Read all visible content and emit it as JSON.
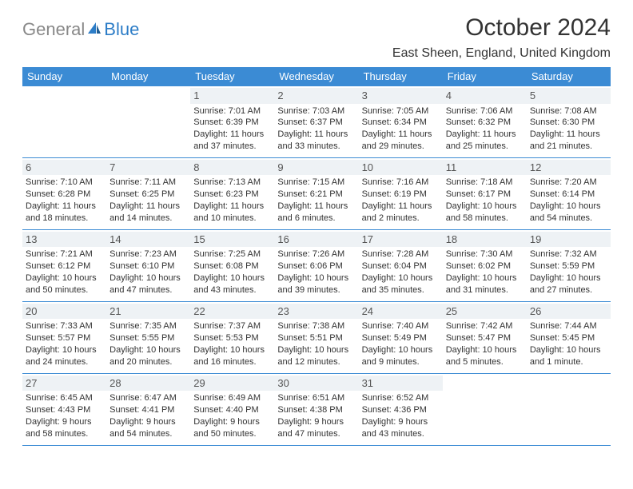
{
  "logo": {
    "gray": "General",
    "blue": "Blue"
  },
  "title": "October 2024",
  "location": "East Sheen, England, United Kingdom",
  "colors": {
    "header_bg": "#3b8bd4",
    "header_text": "#ffffff",
    "border": "#3b8bd4",
    "daynum_bg": "#eef2f5",
    "body_text": "#333333",
    "logo_gray": "#888888",
    "logo_blue": "#2d7dc7"
  },
  "day_headers": [
    "Sunday",
    "Monday",
    "Tuesday",
    "Wednesday",
    "Thursday",
    "Friday",
    "Saturday"
  ],
  "weeks": [
    [
      null,
      null,
      {
        "n": "1",
        "sr": "Sunrise: 7:01 AM",
        "ss": "Sunset: 6:39 PM",
        "d1": "Daylight: 11 hours",
        "d2": "and 37 minutes."
      },
      {
        "n": "2",
        "sr": "Sunrise: 7:03 AM",
        "ss": "Sunset: 6:37 PM",
        "d1": "Daylight: 11 hours",
        "d2": "and 33 minutes."
      },
      {
        "n": "3",
        "sr": "Sunrise: 7:05 AM",
        "ss": "Sunset: 6:34 PM",
        "d1": "Daylight: 11 hours",
        "d2": "and 29 minutes."
      },
      {
        "n": "4",
        "sr": "Sunrise: 7:06 AM",
        "ss": "Sunset: 6:32 PM",
        "d1": "Daylight: 11 hours",
        "d2": "and 25 minutes."
      },
      {
        "n": "5",
        "sr": "Sunrise: 7:08 AM",
        "ss": "Sunset: 6:30 PM",
        "d1": "Daylight: 11 hours",
        "d2": "and 21 minutes."
      }
    ],
    [
      {
        "n": "6",
        "sr": "Sunrise: 7:10 AM",
        "ss": "Sunset: 6:28 PM",
        "d1": "Daylight: 11 hours",
        "d2": "and 18 minutes."
      },
      {
        "n": "7",
        "sr": "Sunrise: 7:11 AM",
        "ss": "Sunset: 6:25 PM",
        "d1": "Daylight: 11 hours",
        "d2": "and 14 minutes."
      },
      {
        "n": "8",
        "sr": "Sunrise: 7:13 AM",
        "ss": "Sunset: 6:23 PM",
        "d1": "Daylight: 11 hours",
        "d2": "and 10 minutes."
      },
      {
        "n": "9",
        "sr": "Sunrise: 7:15 AM",
        "ss": "Sunset: 6:21 PM",
        "d1": "Daylight: 11 hours",
        "d2": "and 6 minutes."
      },
      {
        "n": "10",
        "sr": "Sunrise: 7:16 AM",
        "ss": "Sunset: 6:19 PM",
        "d1": "Daylight: 11 hours",
        "d2": "and 2 minutes."
      },
      {
        "n": "11",
        "sr": "Sunrise: 7:18 AM",
        "ss": "Sunset: 6:17 PM",
        "d1": "Daylight: 10 hours",
        "d2": "and 58 minutes."
      },
      {
        "n": "12",
        "sr": "Sunrise: 7:20 AM",
        "ss": "Sunset: 6:14 PM",
        "d1": "Daylight: 10 hours",
        "d2": "and 54 minutes."
      }
    ],
    [
      {
        "n": "13",
        "sr": "Sunrise: 7:21 AM",
        "ss": "Sunset: 6:12 PM",
        "d1": "Daylight: 10 hours",
        "d2": "and 50 minutes."
      },
      {
        "n": "14",
        "sr": "Sunrise: 7:23 AM",
        "ss": "Sunset: 6:10 PM",
        "d1": "Daylight: 10 hours",
        "d2": "and 47 minutes."
      },
      {
        "n": "15",
        "sr": "Sunrise: 7:25 AM",
        "ss": "Sunset: 6:08 PM",
        "d1": "Daylight: 10 hours",
        "d2": "and 43 minutes."
      },
      {
        "n": "16",
        "sr": "Sunrise: 7:26 AM",
        "ss": "Sunset: 6:06 PM",
        "d1": "Daylight: 10 hours",
        "d2": "and 39 minutes."
      },
      {
        "n": "17",
        "sr": "Sunrise: 7:28 AM",
        "ss": "Sunset: 6:04 PM",
        "d1": "Daylight: 10 hours",
        "d2": "and 35 minutes."
      },
      {
        "n": "18",
        "sr": "Sunrise: 7:30 AM",
        "ss": "Sunset: 6:02 PM",
        "d1": "Daylight: 10 hours",
        "d2": "and 31 minutes."
      },
      {
        "n": "19",
        "sr": "Sunrise: 7:32 AM",
        "ss": "Sunset: 5:59 PM",
        "d1": "Daylight: 10 hours",
        "d2": "and 27 minutes."
      }
    ],
    [
      {
        "n": "20",
        "sr": "Sunrise: 7:33 AM",
        "ss": "Sunset: 5:57 PM",
        "d1": "Daylight: 10 hours",
        "d2": "and 24 minutes."
      },
      {
        "n": "21",
        "sr": "Sunrise: 7:35 AM",
        "ss": "Sunset: 5:55 PM",
        "d1": "Daylight: 10 hours",
        "d2": "and 20 minutes."
      },
      {
        "n": "22",
        "sr": "Sunrise: 7:37 AM",
        "ss": "Sunset: 5:53 PM",
        "d1": "Daylight: 10 hours",
        "d2": "and 16 minutes."
      },
      {
        "n": "23",
        "sr": "Sunrise: 7:38 AM",
        "ss": "Sunset: 5:51 PM",
        "d1": "Daylight: 10 hours",
        "d2": "and 12 minutes."
      },
      {
        "n": "24",
        "sr": "Sunrise: 7:40 AM",
        "ss": "Sunset: 5:49 PM",
        "d1": "Daylight: 10 hours",
        "d2": "and 9 minutes."
      },
      {
        "n": "25",
        "sr": "Sunrise: 7:42 AM",
        "ss": "Sunset: 5:47 PM",
        "d1": "Daylight: 10 hours",
        "d2": "and 5 minutes."
      },
      {
        "n": "26",
        "sr": "Sunrise: 7:44 AM",
        "ss": "Sunset: 5:45 PM",
        "d1": "Daylight: 10 hours",
        "d2": "and 1 minute."
      }
    ],
    [
      {
        "n": "27",
        "sr": "Sunrise: 6:45 AM",
        "ss": "Sunset: 4:43 PM",
        "d1": "Daylight: 9 hours",
        "d2": "and 58 minutes."
      },
      {
        "n": "28",
        "sr": "Sunrise: 6:47 AM",
        "ss": "Sunset: 4:41 PM",
        "d1": "Daylight: 9 hours",
        "d2": "and 54 minutes."
      },
      {
        "n": "29",
        "sr": "Sunrise: 6:49 AM",
        "ss": "Sunset: 4:40 PM",
        "d1": "Daylight: 9 hours",
        "d2": "and 50 minutes."
      },
      {
        "n": "30",
        "sr": "Sunrise: 6:51 AM",
        "ss": "Sunset: 4:38 PM",
        "d1": "Daylight: 9 hours",
        "d2": "and 47 minutes."
      },
      {
        "n": "31",
        "sr": "Sunrise: 6:52 AM",
        "ss": "Sunset: 4:36 PM",
        "d1": "Daylight: 9 hours",
        "d2": "and 43 minutes."
      },
      null,
      null
    ]
  ]
}
